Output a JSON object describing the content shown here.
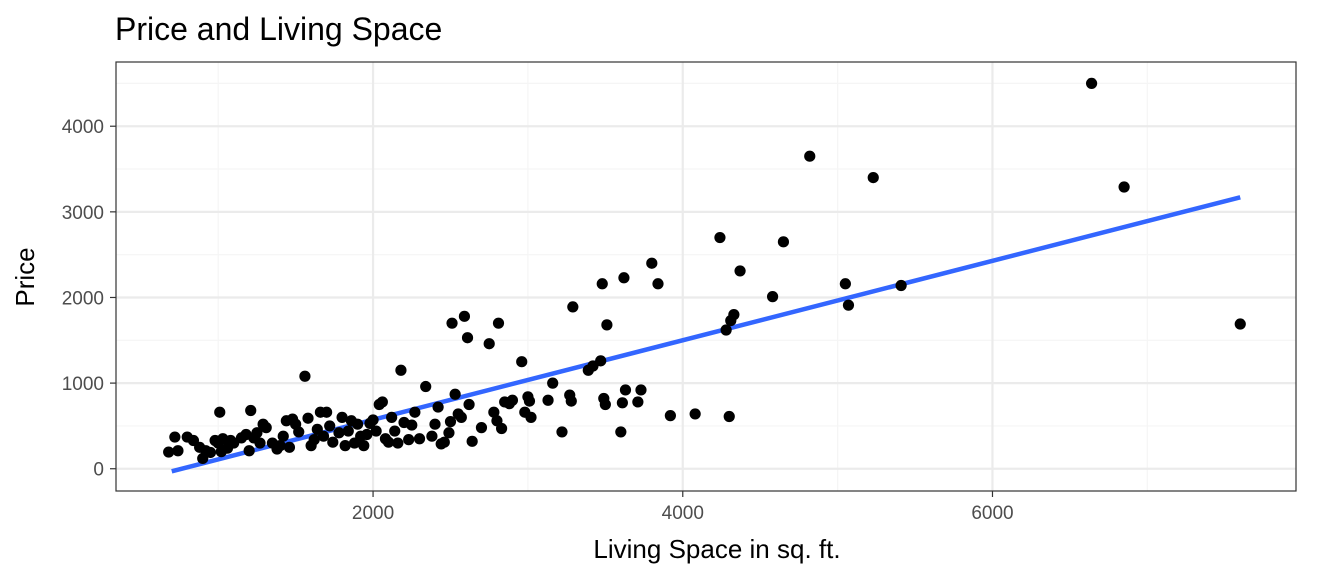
{
  "chart_data": {
    "type": "scatter",
    "title": "Price and Living Space",
    "xlabel": "Living Space in sq. ft.",
    "ylabel": "Price",
    "xlim": [
      340,
      7960
    ],
    "ylim": [
      -260,
      4750
    ],
    "x_ticks": [
      2000,
      4000,
      6000
    ],
    "x_tick_labels": [
      "2000",
      "4000",
      "6000"
    ],
    "x_minor_ticks": [
      1000,
      3000,
      5000,
      7000
    ],
    "y_ticks": [
      0,
      1000,
      2000,
      3000,
      4000
    ],
    "y_tick_labels": [
      "0",
      "1000",
      "2000",
      "3000",
      "4000"
    ],
    "y_minor_ticks": [
      500,
      1500,
      2500,
      3500,
      4500
    ],
    "grid": true,
    "theme": "black-and-white",
    "point_color": "#000000",
    "trend_line": {
      "method": "linear",
      "color": "#3366ff",
      "x": [
        700,
        7600
      ],
      "y": [
        -30,
        3170
      ]
    },
    "points": [
      [
        680,
        195
      ],
      [
        720,
        370
      ],
      [
        740,
        210
      ],
      [
        800,
        370
      ],
      [
        840,
        330
      ],
      [
        880,
        250
      ],
      [
        900,
        120
      ],
      [
        920,
        210
      ],
      [
        950,
        190
      ],
      [
        980,
        330
      ],
      [
        1000,
        300
      ],
      [
        1010,
        660
      ],
      [
        1020,
        200
      ],
      [
        1030,
        350
      ],
      [
        1060,
        240
      ],
      [
        1080,
        330
      ],
      [
        1100,
        300
      ],
      [
        1150,
        360
      ],
      [
        1180,
        400
      ],
      [
        1200,
        210
      ],
      [
        1210,
        680
      ],
      [
        1230,
        360
      ],
      [
        1250,
        420
      ],
      [
        1270,
        300
      ],
      [
        1290,
        520
      ],
      [
        1310,
        480
      ],
      [
        1350,
        300
      ],
      [
        1380,
        230
      ],
      [
        1400,
        270
      ],
      [
        1420,
        380
      ],
      [
        1440,
        560
      ],
      [
        1460,
        250
      ],
      [
        1480,
        580
      ],
      [
        1500,
        520
      ],
      [
        1520,
        430
      ],
      [
        1560,
        1080
      ],
      [
        1580,
        590
      ],
      [
        1600,
        270
      ],
      [
        1620,
        340
      ],
      [
        1640,
        460
      ],
      [
        1660,
        660
      ],
      [
        1680,
        380
      ],
      [
        1700,
        660
      ],
      [
        1720,
        500
      ],
      [
        1740,
        310
      ],
      [
        1780,
        420
      ],
      [
        1800,
        600
      ],
      [
        1820,
        270
      ],
      [
        1840,
        440
      ],
      [
        1860,
        560
      ],
      [
        1880,
        300
      ],
      [
        1900,
        520
      ],
      [
        1920,
        380
      ],
      [
        1940,
        270
      ],
      [
        1960,
        400
      ],
      [
        1980,
        530
      ],
      [
        2000,
        570
      ],
      [
        2020,
        440
      ],
      [
        2040,
        750
      ],
      [
        2060,
        780
      ],
      [
        2080,
        350
      ],
      [
        2100,
        310
      ],
      [
        2120,
        600
      ],
      [
        2140,
        440
      ],
      [
        2160,
        300
      ],
      [
        2180,
        1150
      ],
      [
        2200,
        540
      ],
      [
        2230,
        340
      ],
      [
        2250,
        510
      ],
      [
        2270,
        660
      ],
      [
        2300,
        350
      ],
      [
        2340,
        960
      ],
      [
        2380,
        380
      ],
      [
        2400,
        520
      ],
      [
        2420,
        720
      ],
      [
        2440,
        290
      ],
      [
        2460,
        310
      ],
      [
        2490,
        420
      ],
      [
        2500,
        550
      ],
      [
        2510,
        1700
      ],
      [
        2530,
        870
      ],
      [
        2550,
        640
      ],
      [
        2570,
        600
      ],
      [
        2590,
        1780
      ],
      [
        2610,
        1530
      ],
      [
        2620,
        750
      ],
      [
        2640,
        320
      ],
      [
        2700,
        480
      ],
      [
        2750,
        1460
      ],
      [
        2780,
        660
      ],
      [
        2800,
        560
      ],
      [
        2810,
        1700
      ],
      [
        2830,
        470
      ],
      [
        2850,
        780
      ],
      [
        2880,
        760
      ],
      [
        2900,
        800
      ],
      [
        2960,
        1250
      ],
      [
        2980,
        660
      ],
      [
        3000,
        840
      ],
      [
        3010,
        790
      ],
      [
        3020,
        600
      ],
      [
        3130,
        800
      ],
      [
        3160,
        1000
      ],
      [
        3220,
        430
      ],
      [
        3270,
        860
      ],
      [
        3280,
        790
      ],
      [
        3290,
        1890
      ],
      [
        3390,
        1150
      ],
      [
        3420,
        1200
      ],
      [
        3470,
        1260
      ],
      [
        3480,
        2160
      ],
      [
        3490,
        820
      ],
      [
        3500,
        750
      ],
      [
        3510,
        1680
      ],
      [
        3600,
        430
      ],
      [
        3610,
        770
      ],
      [
        3620,
        2230
      ],
      [
        3630,
        920
      ],
      [
        3710,
        780
      ],
      [
        3730,
        920
      ],
      [
        3800,
        2400
      ],
      [
        3840,
        2160
      ],
      [
        3920,
        620
      ],
      [
        4080,
        640
      ],
      [
        4240,
        2700
      ],
      [
        4280,
        1620
      ],
      [
        4300,
        610
      ],
      [
        4310,
        1730
      ],
      [
        4330,
        1800
      ],
      [
        4370,
        2310
      ],
      [
        4580,
        2010
      ],
      [
        4650,
        2650
      ],
      [
        4820,
        3650
      ],
      [
        5050,
        2160
      ],
      [
        5070,
        1910
      ],
      [
        5230,
        3400
      ],
      [
        5410,
        2140
      ],
      [
        6640,
        4500
      ],
      [
        6850,
        3290
      ],
      [
        7600,
        1690
      ]
    ]
  }
}
